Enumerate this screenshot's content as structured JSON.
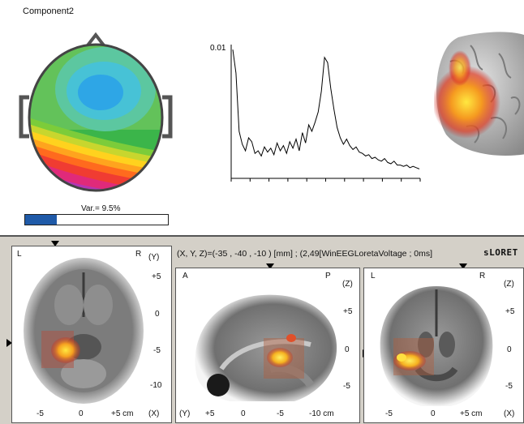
{
  "component": {
    "title": "Component2"
  },
  "variance": {
    "label": "Var.= 9.5%",
    "fraction": 0.22
  },
  "spectrum": {
    "y_label": "0.01",
    "values": [
      0.0098,
      0.008,
      0.0035,
      0.0025,
      0.002,
      0.003,
      0.0027,
      0.0018,
      0.002,
      0.0016,
      0.0023,
      0.0019,
      0.0022,
      0.0017,
      0.0026,
      0.002,
      0.0024,
      0.0018,
      0.0027,
      0.0022,
      0.0029,
      0.002,
      0.0034,
      0.0026,
      0.004,
      0.0035,
      0.0042,
      0.005,
      0.0066,
      0.0092,
      0.0088,
      0.0068,
      0.0052,
      0.0038,
      0.003,
      0.0025,
      0.0029,
      0.0024,
      0.0021,
      0.0023,
      0.0019,
      0.0018,
      0.0016,
      0.0017,
      0.0014,
      0.0015,
      0.0013,
      0.0012,
      0.0014,
      0.0011,
      0.001,
      0.0012,
      0.0009,
      0.0009,
      0.0008,
      0.0009,
      0.0007,
      0.0008,
      0.0007,
      0.0006
    ]
  },
  "loreta": {
    "coords": "(X, Y, Z)=(-35 , -40 , -10 ) [mm] ;  (2,49[WinEEGLoretaVoltage ; 0ms]",
    "brand": "sLORET",
    "axial": {
      "left": "L",
      "right": "R",
      "axis_v": "(Y)",
      "axis_h": "(X)",
      "unit": "+5 cm",
      "v_ticks": [
        "+5",
        "0",
        "-5",
        "-10"
      ],
      "h_ticks": [
        "-5",
        "0"
      ]
    },
    "sagittal": {
      "left": "A",
      "right": "P",
      "axis_v": "(Z)",
      "axis_h": "(Y)",
      "v_ticks": [
        "+5",
        "0",
        "-5"
      ],
      "h_ticks": [
        "+5",
        "0",
        "-5",
        "-10 cm"
      ]
    },
    "coronal": {
      "left": "L",
      "right": "R",
      "axis_v": "(Z)",
      "axis_h": "(X)",
      "unit": "+5 cm",
      "v_ticks": [
        "+5",
        "0",
        "-5"
      ],
      "h_ticks": [
        "-5",
        "0"
      ]
    }
  },
  "colors": {
    "accent_blue": "#1f5aa8",
    "hot": [
      "#7a0010",
      "#d42020",
      "#f07020",
      "#ffd020",
      "#ffff80"
    ]
  }
}
